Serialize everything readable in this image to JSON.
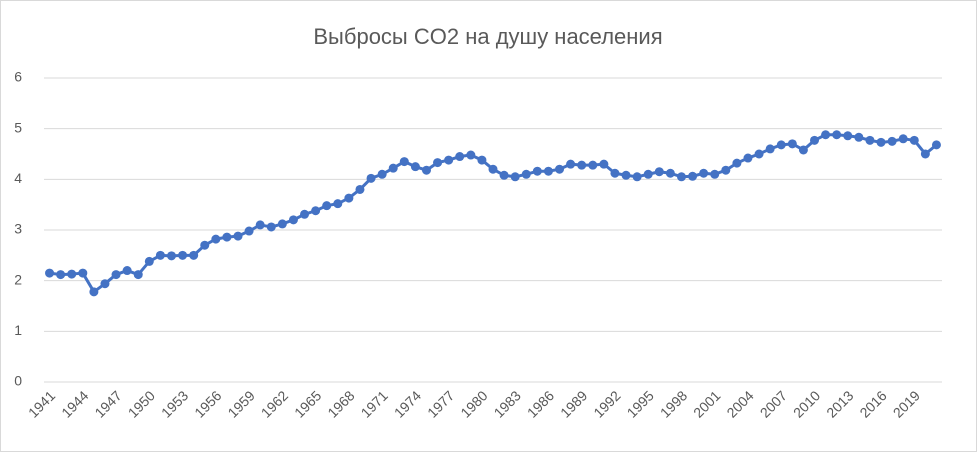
{
  "chart_data": {
    "type": "line",
    "title": "Выбросы CO2 на душу населения",
    "categories": [
      "1941",
      null,
      null,
      "1944",
      null,
      null,
      "1947",
      null,
      null,
      "1950",
      null,
      null,
      "1953",
      null,
      null,
      "1956",
      null,
      null,
      "1959",
      null,
      null,
      "1962",
      null,
      null,
      "1965",
      null,
      null,
      "1968",
      null,
      null,
      "1971",
      null,
      null,
      "1974",
      null,
      null,
      "1977",
      null,
      null,
      "1980",
      null,
      null,
      "1983",
      null,
      null,
      "1986",
      null,
      null,
      "1989",
      null,
      null,
      "1992",
      null,
      null,
      "1995",
      null,
      null,
      "1998",
      null,
      null,
      "2001",
      null,
      null,
      "2004",
      null,
      null,
      "2007",
      null,
      null,
      "2010",
      null,
      null,
      "2013",
      null,
      null,
      "2016",
      null,
      null,
      "2019",
      null,
      null
    ],
    "series": [
      {
        "color": "#4472c4",
        "values": [
          2.15,
          2.12,
          2.13,
          2.15,
          1.78,
          1.94,
          2.12,
          2.2,
          2.12,
          2.38,
          2.5,
          2.49,
          2.5,
          2.5,
          2.7,
          2.82,
          2.86,
          2.88,
          2.98,
          3.1,
          3.06,
          3.12,
          3.2,
          3.31,
          3.38,
          3.48,
          3.52,
          3.63,
          3.8,
          4.02,
          4.1,
          4.22,
          4.35,
          4.25,
          4.18,
          4.33,
          4.38,
          4.45,
          4.48,
          4.38,
          4.2,
          4.08,
          4.05,
          4.1,
          4.16,
          4.16,
          4.2,
          4.3,
          4.28,
          4.28,
          4.3,
          4.12,
          4.08,
          4.05,
          4.1,
          4.15,
          4.12,
          4.05,
          4.06,
          4.12,
          4.1,
          4.18,
          4.32,
          4.42,
          4.5,
          4.6,
          4.68,
          4.7,
          4.58,
          4.77,
          4.88,
          4.88,
          4.86,
          4.83,
          4.77,
          4.73,
          4.75,
          4.8,
          4.77,
          4.5,
          4.68
        ]
      }
    ],
    "ylim": [
      0,
      6
    ],
    "yticks": [
      0,
      1,
      2,
      3,
      4,
      5,
      6
    ],
    "grid": true
  }
}
